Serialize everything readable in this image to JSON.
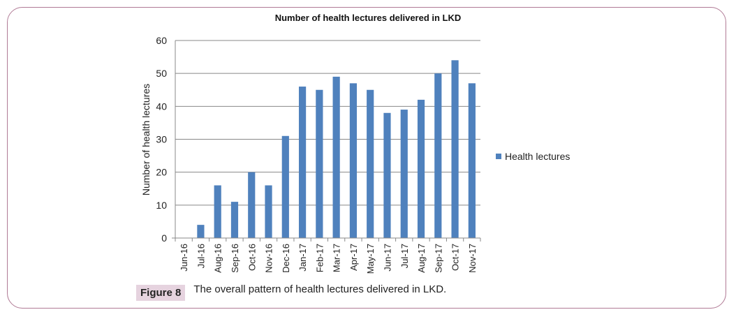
{
  "figure": {
    "label": "Figure 8",
    "caption": "The overall pattern of health lectures delivered in LKD."
  },
  "chart_data": {
    "type": "bar",
    "title": "Number of health lectures delivered in LKD",
    "xlabel": "",
    "ylabel": "Number of health lectures",
    "ylim": [
      0,
      60
    ],
    "yticks": [
      0,
      10,
      20,
      30,
      40,
      50,
      60
    ],
    "grid": true,
    "legend_position": "right",
    "categories": [
      "Jun-16",
      "Jul-16",
      "Aug-16",
      "Sep-16",
      "Oct-16",
      "Nov-16",
      "Dec-16",
      "Jan-17",
      "Feb-17",
      "Mar-17",
      "Apr-17",
      "May-17",
      "Jun-17",
      "Jul-17",
      "Aug-17",
      "Sep-17",
      "Oct-17",
      "Nov-17"
    ],
    "series": [
      {
        "name": "Health lectures",
        "color": "#4f81bd",
        "values": [
          0,
          4,
          16,
          11,
          20,
          16,
          31,
          46,
          45,
          49,
          47,
          45,
          38,
          39,
          42,
          50,
          54,
          47
        ]
      }
    ]
  }
}
